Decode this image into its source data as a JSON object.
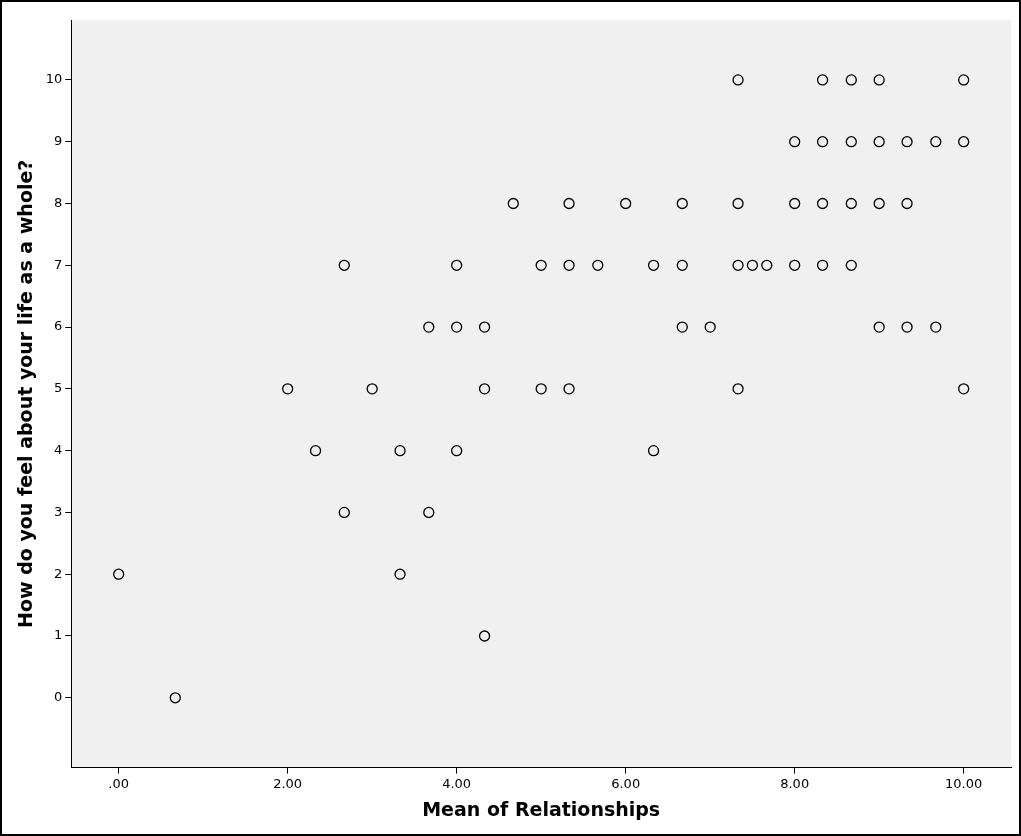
{
  "chart_data": {
    "type": "scatter",
    "xlabel": "Mean of Relationships",
    "ylabel": "How do you feel about your life as a whole?",
    "x": [
      7.33,
      8.33,
      8.67,
      9.0,
      10.0,
      8.0,
      8.33,
      8.67,
      9.0,
      9.33,
      9.67,
      10.0,
      4.67,
      5.33,
      6.0,
      6.67,
      7.33,
      8.0,
      8.33,
      8.67,
      9.0,
      9.33,
      2.67,
      4.0,
      5.0,
      5.33,
      5.67,
      6.33,
      6.67,
      7.33,
      7.5,
      7.67,
      8.0,
      8.33,
      8.67,
      3.67,
      4.0,
      4.33,
      6.67,
      7.0,
      9.0,
      9.33,
      9.67,
      2.0,
      3.0,
      4.33,
      5.0,
      5.33,
      7.33,
      10.0,
      2.33,
      3.33,
      4.0,
      6.33,
      2.67,
      3.67,
      0.0,
      3.33,
      4.33,
      0.67
    ],
    "values": [
      10,
      10,
      10,
      10,
      10,
      9,
      9,
      9,
      9,
      9,
      9,
      9,
      8,
      8,
      8,
      8,
      8,
      8,
      8,
      8,
      8,
      8,
      7,
      7,
      7,
      7,
      7,
      7,
      7,
      7,
      7,
      7,
      7,
      7,
      7,
      6,
      6,
      6,
      6,
      6,
      6,
      6,
      6,
      5,
      5,
      5,
      5,
      5,
      5,
      5,
      4,
      4,
      4,
      4,
      3,
      3,
      2,
      2,
      1,
      0
    ],
    "color": "#000000",
    "marker": "circle",
    "grid": false,
    "legend": false,
    "xlim": [
      -0.56,
      10.56
    ],
    "xticks": [
      {
        "value": 0,
        "label": ".00"
      },
      {
        "value": 2,
        "label": "2.00"
      },
      {
        "value": 4,
        "label": "4.00"
      },
      {
        "value": 6,
        "label": "6.00"
      },
      {
        "value": 8,
        "label": "8.00"
      },
      {
        "value": 10,
        "label": "10.00"
      }
    ],
    "ylim": [
      -1.13,
      10.97
    ],
    "yticks": [
      0,
      1,
      2,
      3,
      4,
      5,
      6,
      7,
      8,
      9,
      10
    ]
  }
}
